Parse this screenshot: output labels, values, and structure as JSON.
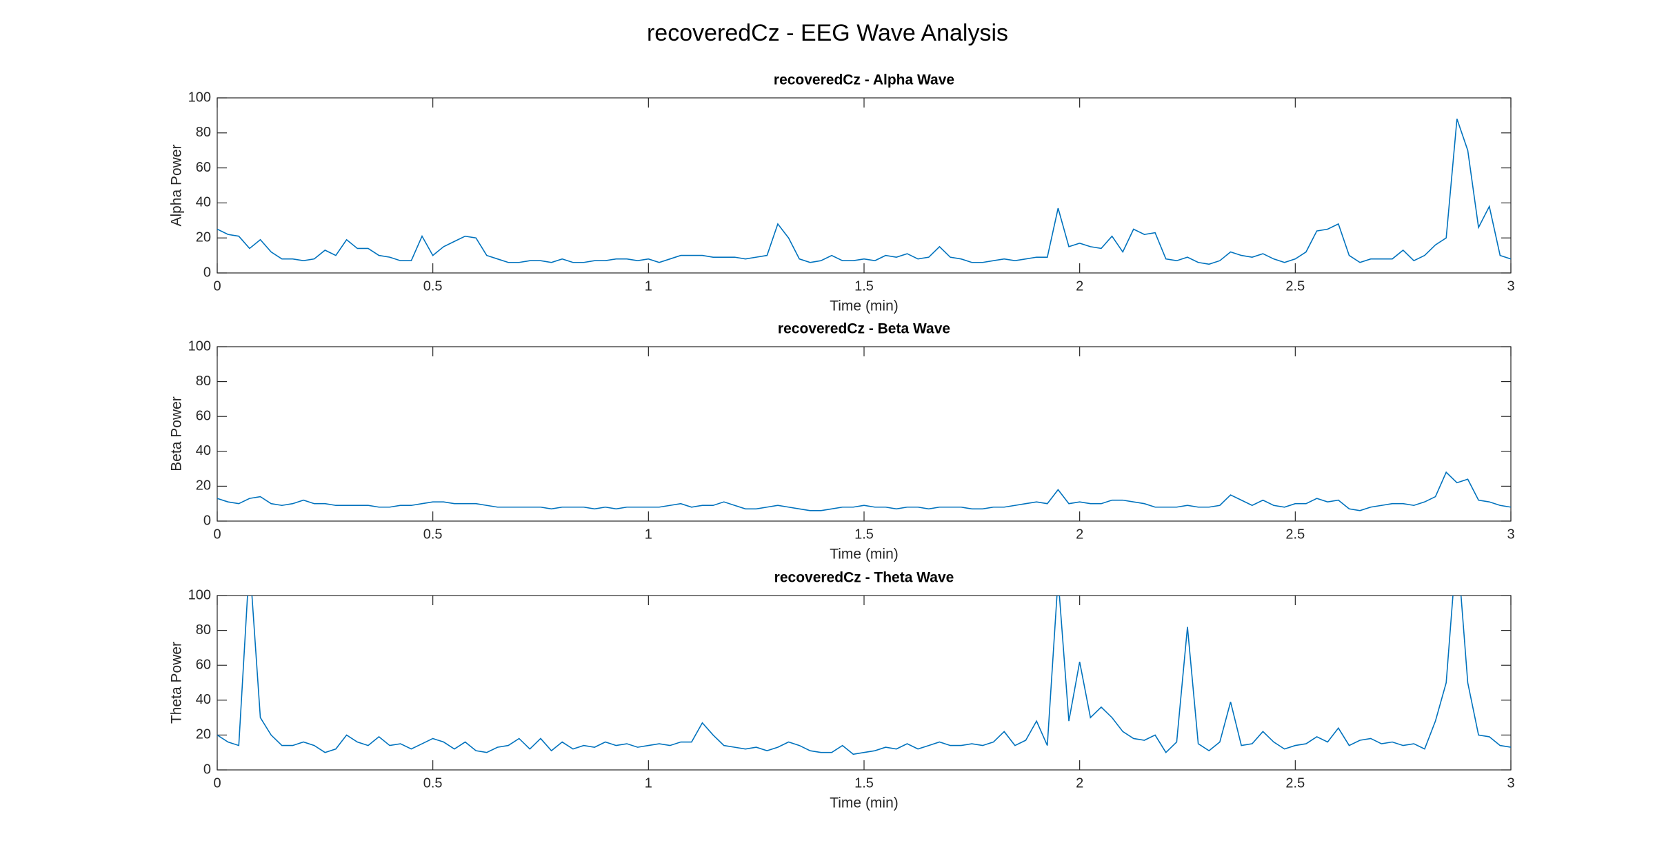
{
  "title": "recoveredCz - EEG Wave Analysis",
  "chart_data": [
    {
      "type": "line",
      "title": "recoveredCz - Alpha Wave",
      "xlabel": "Time (min)",
      "ylabel": "Alpha Power",
      "x": [
        0,
        0.025,
        0.05,
        0.075,
        0.1,
        0.125,
        0.15,
        0.175,
        0.2,
        0.225,
        0.25,
        0.275,
        0.3,
        0.325,
        0.35,
        0.375,
        0.4,
        0.425,
        0.45,
        0.475,
        0.5,
        0.525,
        0.55,
        0.575,
        0.6,
        0.625,
        0.65,
        0.675,
        0.7,
        0.725,
        0.75,
        0.775,
        0.8,
        0.825,
        0.85,
        0.875,
        0.9,
        0.925,
        0.95,
        0.975,
        1,
        1.025,
        1.05,
        1.075,
        1.1,
        1.125,
        1.15,
        1.175,
        1.2,
        1.225,
        1.25,
        1.275,
        1.3,
        1.325,
        1.35,
        1.375,
        1.4,
        1.425,
        1.45,
        1.475,
        1.5,
        1.525,
        1.55,
        1.575,
        1.6,
        1.625,
        1.65,
        1.675,
        1.7,
        1.725,
        1.75,
        1.775,
        1.8,
        1.825,
        1.85,
        1.875,
        1.9,
        1.925,
        1.95,
        1.975,
        2,
        2.025,
        2.05,
        2.075,
        2.1,
        2.125,
        2.15,
        2.175,
        2.2,
        2.225,
        2.25,
        2.275,
        2.3,
        2.325,
        2.35,
        2.375,
        2.4,
        2.425,
        2.45,
        2.475,
        2.5,
        2.525,
        2.55,
        2.575,
        2.6,
        2.625,
        2.65,
        2.675,
        2.7,
        2.725,
        2.75,
        2.775,
        2.8,
        2.825,
        2.85,
        2.875,
        2.9,
        2.925,
        2.95,
        2.975,
        3
      ],
      "series": [
        {
          "color": "#0072bd",
          "values": [
            25,
            22,
            21,
            14,
            19,
            12,
            8,
            8,
            7,
            8,
            13,
            10,
            19,
            14,
            14,
            10,
            9,
            7,
            7,
            21,
            10,
            15,
            18,
            21,
            20,
            10,
            8,
            6,
            6,
            7,
            7,
            6,
            8,
            6,
            6,
            7,
            7,
            8,
            8,
            7,
            8,
            6,
            8,
            10,
            10,
            10,
            9,
            9,
            9,
            8,
            9,
            10,
            28,
            20,
            8,
            6,
            7,
            10,
            7,
            7,
            8,
            7,
            10,
            9,
            11,
            8,
            9,
            15,
            9,
            8,
            6,
            6,
            7,
            8,
            7,
            8,
            9,
            9,
            37,
            15,
            17,
            15,
            14,
            21,
            12,
            25,
            22,
            23,
            8,
            7,
            9,
            6,
            5,
            7,
            12,
            10,
            9,
            11,
            8,
            6,
            8,
            12,
            24,
            25,
            28,
            10,
            6,
            8,
            8,
            8,
            13,
            7,
            10,
            16,
            20,
            88,
            70,
            26,
            38,
            10,
            8
          ]
        }
      ],
      "xlim": [
        0,
        3
      ],
      "ylim": [
        0,
        100
      ],
      "xticks": [
        0,
        0.5,
        1,
        1.5,
        2,
        2.5,
        3
      ],
      "yticks": [
        0,
        20,
        40,
        60,
        80,
        100
      ]
    },
    {
      "type": "line",
      "title": "recoveredCz - Beta Wave",
      "xlabel": "Time (min)",
      "ylabel": "Beta Power",
      "x": [
        0,
        0.025,
        0.05,
        0.075,
        0.1,
        0.125,
        0.15,
        0.175,
        0.2,
        0.225,
        0.25,
        0.275,
        0.3,
        0.325,
        0.35,
        0.375,
        0.4,
        0.425,
        0.45,
        0.475,
        0.5,
        0.525,
        0.55,
        0.575,
        0.6,
        0.625,
        0.65,
        0.675,
        0.7,
        0.725,
        0.75,
        0.775,
        0.8,
        0.825,
        0.85,
        0.875,
        0.9,
        0.925,
        0.95,
        0.975,
        1,
        1.025,
        1.05,
        1.075,
        1.1,
        1.125,
        1.15,
        1.175,
        1.2,
        1.225,
        1.25,
        1.275,
        1.3,
        1.325,
        1.35,
        1.375,
        1.4,
        1.425,
        1.45,
        1.475,
        1.5,
        1.525,
        1.55,
        1.575,
        1.6,
        1.625,
        1.65,
        1.675,
        1.7,
        1.725,
        1.75,
        1.775,
        1.8,
        1.825,
        1.85,
        1.875,
        1.9,
        1.925,
        1.95,
        1.975,
        2,
        2.025,
        2.05,
        2.075,
        2.1,
        2.125,
        2.15,
        2.175,
        2.2,
        2.225,
        2.25,
        2.275,
        2.3,
        2.325,
        2.35,
        2.375,
        2.4,
        2.425,
        2.45,
        2.475,
        2.5,
        2.525,
        2.55,
        2.575,
        2.6,
        2.625,
        2.65,
        2.675,
        2.7,
        2.725,
        2.75,
        2.775,
        2.8,
        2.825,
        2.85,
        2.875,
        2.9,
        2.925,
        2.95,
        2.975,
        3
      ],
      "series": [
        {
          "color": "#0072bd",
          "values": [
            13,
            11,
            10,
            13,
            14,
            10,
            9,
            10,
            12,
            10,
            10,
            9,
            9,
            9,
            9,
            8,
            8,
            9,
            9,
            10,
            11,
            11,
            10,
            10,
            10,
            9,
            8,
            8,
            8,
            8,
            8,
            7,
            8,
            8,
            8,
            7,
            8,
            7,
            8,
            8,
            8,
            8,
            9,
            10,
            8,
            9,
            9,
            11,
            9,
            7,
            7,
            8,
            9,
            8,
            7,
            6,
            6,
            7,
            8,
            8,
            9,
            8,
            8,
            7,
            8,
            8,
            7,
            8,
            8,
            8,
            7,
            7,
            8,
            8,
            9,
            10,
            11,
            10,
            18,
            10,
            11,
            10,
            10,
            12,
            12,
            11,
            10,
            8,
            8,
            8,
            9,
            8,
            8,
            9,
            15,
            12,
            9,
            12,
            9,
            8,
            10,
            10,
            13,
            11,
            12,
            7,
            6,
            8,
            9,
            10,
            10,
            9,
            11,
            14,
            28,
            22,
            24,
            12,
            11,
            9,
            8
          ]
        }
      ],
      "xlim": [
        0,
        3
      ],
      "ylim": [
        0,
        100
      ],
      "xticks": [
        0,
        0.5,
        1,
        1.5,
        2,
        2.5,
        3
      ],
      "yticks": [
        0,
        20,
        40,
        60,
        80,
        100
      ]
    },
    {
      "type": "line",
      "title": "recoveredCz - Theta Wave",
      "xlabel": "Time (min)",
      "ylabel": "Theta Power",
      "x": [
        0,
        0.025,
        0.05,
        0.075,
        0.1,
        0.125,
        0.15,
        0.175,
        0.2,
        0.225,
        0.25,
        0.275,
        0.3,
        0.325,
        0.35,
        0.375,
        0.4,
        0.425,
        0.45,
        0.475,
        0.5,
        0.525,
        0.55,
        0.575,
        0.6,
        0.625,
        0.65,
        0.675,
        0.7,
        0.725,
        0.75,
        0.775,
        0.8,
        0.825,
        0.85,
        0.875,
        0.9,
        0.925,
        0.95,
        0.975,
        1,
        1.025,
        1.05,
        1.075,
        1.1,
        1.125,
        1.15,
        1.175,
        1.2,
        1.225,
        1.25,
        1.275,
        1.3,
        1.325,
        1.35,
        1.375,
        1.4,
        1.425,
        1.45,
        1.475,
        1.5,
        1.525,
        1.55,
        1.575,
        1.6,
        1.625,
        1.65,
        1.675,
        1.7,
        1.725,
        1.75,
        1.775,
        1.8,
        1.825,
        1.85,
        1.875,
        1.9,
        1.925,
        1.95,
        1.975,
        2,
        2.025,
        2.05,
        2.075,
        2.1,
        2.125,
        2.15,
        2.175,
        2.2,
        2.225,
        2.25,
        2.275,
        2.3,
        2.325,
        2.35,
        2.375,
        2.4,
        2.425,
        2.45,
        2.475,
        2.5,
        2.525,
        2.55,
        2.575,
        2.6,
        2.625,
        2.65,
        2.675,
        2.7,
        2.725,
        2.75,
        2.775,
        2.8,
        2.825,
        2.85,
        2.875,
        2.9,
        2.925,
        2.95,
        2.975,
        3
      ],
      "series": [
        {
          "color": "#0072bd",
          "values": [
            20,
            16,
            14,
            120,
            30,
            20,
            14,
            14,
            16,
            14,
            10,
            12,
            20,
            16,
            14,
            19,
            14,
            15,
            12,
            15,
            18,
            16,
            12,
            16,
            11,
            10,
            13,
            14,
            18,
            12,
            18,
            11,
            16,
            12,
            14,
            13,
            16,
            14,
            15,
            13,
            14,
            15,
            14,
            16,
            16,
            27,
            20,
            14,
            13,
            12,
            13,
            11,
            13,
            16,
            14,
            11,
            10,
            10,
            14,
            9,
            10,
            11,
            13,
            12,
            15,
            12,
            14,
            16,
            14,
            14,
            15,
            14,
            16,
            22,
            14,
            17,
            28,
            14,
            110,
            28,
            62,
            30,
            36,
            30,
            22,
            18,
            17,
            20,
            10,
            16,
            82,
            15,
            11,
            16,
            39,
            14,
            15,
            22,
            16,
            12,
            14,
            15,
            19,
            16,
            24,
            14,
            17,
            18,
            15,
            16,
            14,
            15,
            12,
            28,
            50,
            130,
            50,
            20,
            19,
            14,
            13
          ]
        }
      ],
      "xlim": [
        0,
        3
      ],
      "ylim": [
        0,
        100
      ],
      "xticks": [
        0,
        0.5,
        1,
        1.5,
        2,
        2.5,
        3
      ],
      "yticks": [
        0,
        20,
        40,
        60,
        80,
        100
      ]
    }
  ]
}
